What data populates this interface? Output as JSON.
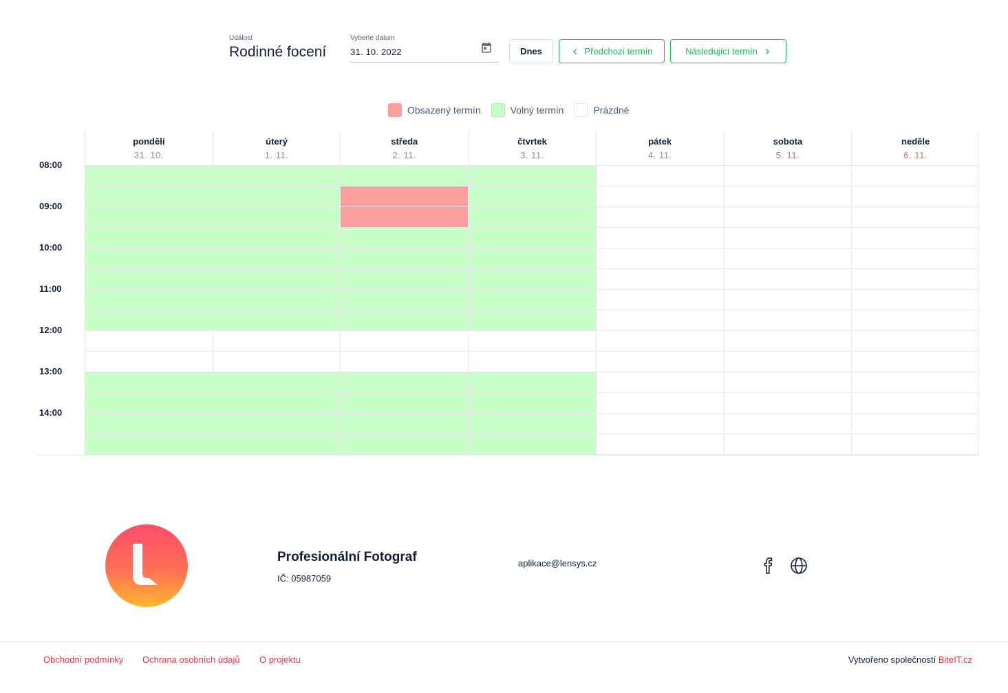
{
  "event": {
    "label": "Událost",
    "title": "Rodinné focení"
  },
  "date_picker": {
    "label": "Vyberte datum",
    "value": "31. 10. 2022",
    "icon": "calendar-icon"
  },
  "buttons": {
    "today": "Dnes",
    "prev": "Předchozí termín",
    "next": "Následující termín"
  },
  "legend": [
    {
      "label": "Obsazený termín",
      "color": "#fc9e9e"
    },
    {
      "label": "Volný termín",
      "color": "#c8ffc8"
    },
    {
      "label": "Prázdné",
      "color": "#ffffff"
    }
  ],
  "days": [
    {
      "name": "pondělí",
      "date": "31. 10.",
      "weekend": false
    },
    {
      "name": "úterý",
      "date": "1. 11.",
      "weekend": false
    },
    {
      "name": "středa",
      "date": "2. 11.",
      "weekend": false
    },
    {
      "name": "čtvrtek",
      "date": "3. 11.",
      "weekend": false
    },
    {
      "name": "pátek",
      "date": "4. 11.",
      "weekend": false
    },
    {
      "name": "sobota",
      "date": "5. 11.",
      "weekend": true
    },
    {
      "name": "neděle",
      "date": "6. 11.",
      "weekend": true
    }
  ],
  "times": [
    "08:00",
    "09:00",
    "10:00",
    "11:00",
    "12:00",
    "13:00",
    "14:00"
  ],
  "slot_states": [
    [
      "free",
      "free",
      "free",
      "free",
      "empty",
      "empty",
      "empty"
    ],
    [
      "free",
      "free",
      "busy",
      "free",
      "empty",
      "empty",
      "empty"
    ],
    [
      "free",
      "free",
      "busy",
      "free",
      "empty",
      "empty",
      "empty"
    ],
    [
      "free",
      "free",
      "free",
      "free",
      "empty",
      "empty",
      "empty"
    ],
    [
      "free",
      "free",
      "free",
      "free",
      "empty",
      "empty",
      "empty"
    ],
    [
      "free",
      "free",
      "free",
      "free",
      "empty",
      "empty",
      "empty"
    ],
    [
      "free",
      "free",
      "free",
      "free",
      "empty",
      "empty",
      "empty"
    ],
    [
      "free",
      "free",
      "free",
      "free",
      "empty",
      "empty",
      "empty"
    ],
    [
      "empty",
      "empty",
      "empty",
      "empty",
      "empty",
      "empty",
      "empty"
    ],
    [
      "empty",
      "empty",
      "empty",
      "empty",
      "empty",
      "empty",
      "empty"
    ],
    [
      "free",
      "free",
      "free",
      "free",
      "empty",
      "empty",
      "empty"
    ],
    [
      "free",
      "free",
      "free",
      "free",
      "empty",
      "empty",
      "empty"
    ],
    [
      "free",
      "free",
      "free",
      "free",
      "empty",
      "empty",
      "empty"
    ],
    [
      "free",
      "free",
      "free",
      "free",
      "empty",
      "empty",
      "empty"
    ]
  ],
  "footer": {
    "company": "Profesionální Fotograf",
    "ico": "IČ: 05987059",
    "email": "aplikace@lensys.cz",
    "social_icons": [
      "facebook-icon",
      "globe-icon"
    ],
    "links": [
      "Obchodní podmínky",
      "Ochrana osobních údajů",
      "O projektu"
    ],
    "credit_prefix": "Vytvořeno společností",
    "credit_link": "BiteIT.cz"
  }
}
